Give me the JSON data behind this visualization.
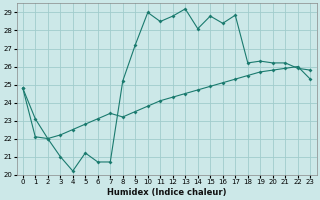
{
  "xlabel": "Humidex (Indice chaleur)",
  "xlim": [
    -0.5,
    23.5
  ],
  "ylim": [
    20,
    29.5
  ],
  "yticks": [
    20,
    21,
    22,
    23,
    24,
    25,
    26,
    27,
    28,
    29
  ],
  "xticks": [
    0,
    1,
    2,
    3,
    4,
    5,
    6,
    7,
    8,
    9,
    10,
    11,
    12,
    13,
    14,
    15,
    16,
    17,
    18,
    19,
    20,
    21,
    22,
    23
  ],
  "line_color": "#1a7a6e",
  "bg_color": "#cce8e8",
  "grid_color": "#a0cccc",
  "line1_x": [
    0,
    1,
    2,
    3,
    4,
    5,
    6,
    7,
    8,
    9,
    10,
    11,
    12,
    13,
    14,
    15,
    16,
    17,
    18,
    19,
    20,
    21,
    22,
    23
  ],
  "line1_y": [
    24.8,
    23.1,
    22.0,
    21.0,
    20.2,
    21.2,
    20.7,
    20.7,
    25.2,
    27.2,
    29.0,
    28.5,
    28.8,
    29.2,
    28.1,
    28.8,
    28.4,
    28.85,
    26.2,
    26.3,
    26.2,
    26.2,
    25.9,
    25.8
  ],
  "line2_x": [
    0,
    1,
    2,
    3,
    4,
    5,
    6,
    7,
    8,
    9,
    10,
    11,
    12,
    13,
    14,
    15,
    16,
    17,
    18,
    19,
    20,
    21,
    22,
    23
  ],
  "line2_y": [
    24.8,
    22.1,
    22.0,
    22.2,
    22.5,
    22.8,
    23.1,
    23.4,
    23.2,
    23.5,
    23.8,
    24.1,
    24.3,
    24.5,
    24.7,
    24.9,
    25.1,
    25.3,
    25.5,
    25.7,
    25.8,
    25.9,
    26.0,
    25.3
  ]
}
